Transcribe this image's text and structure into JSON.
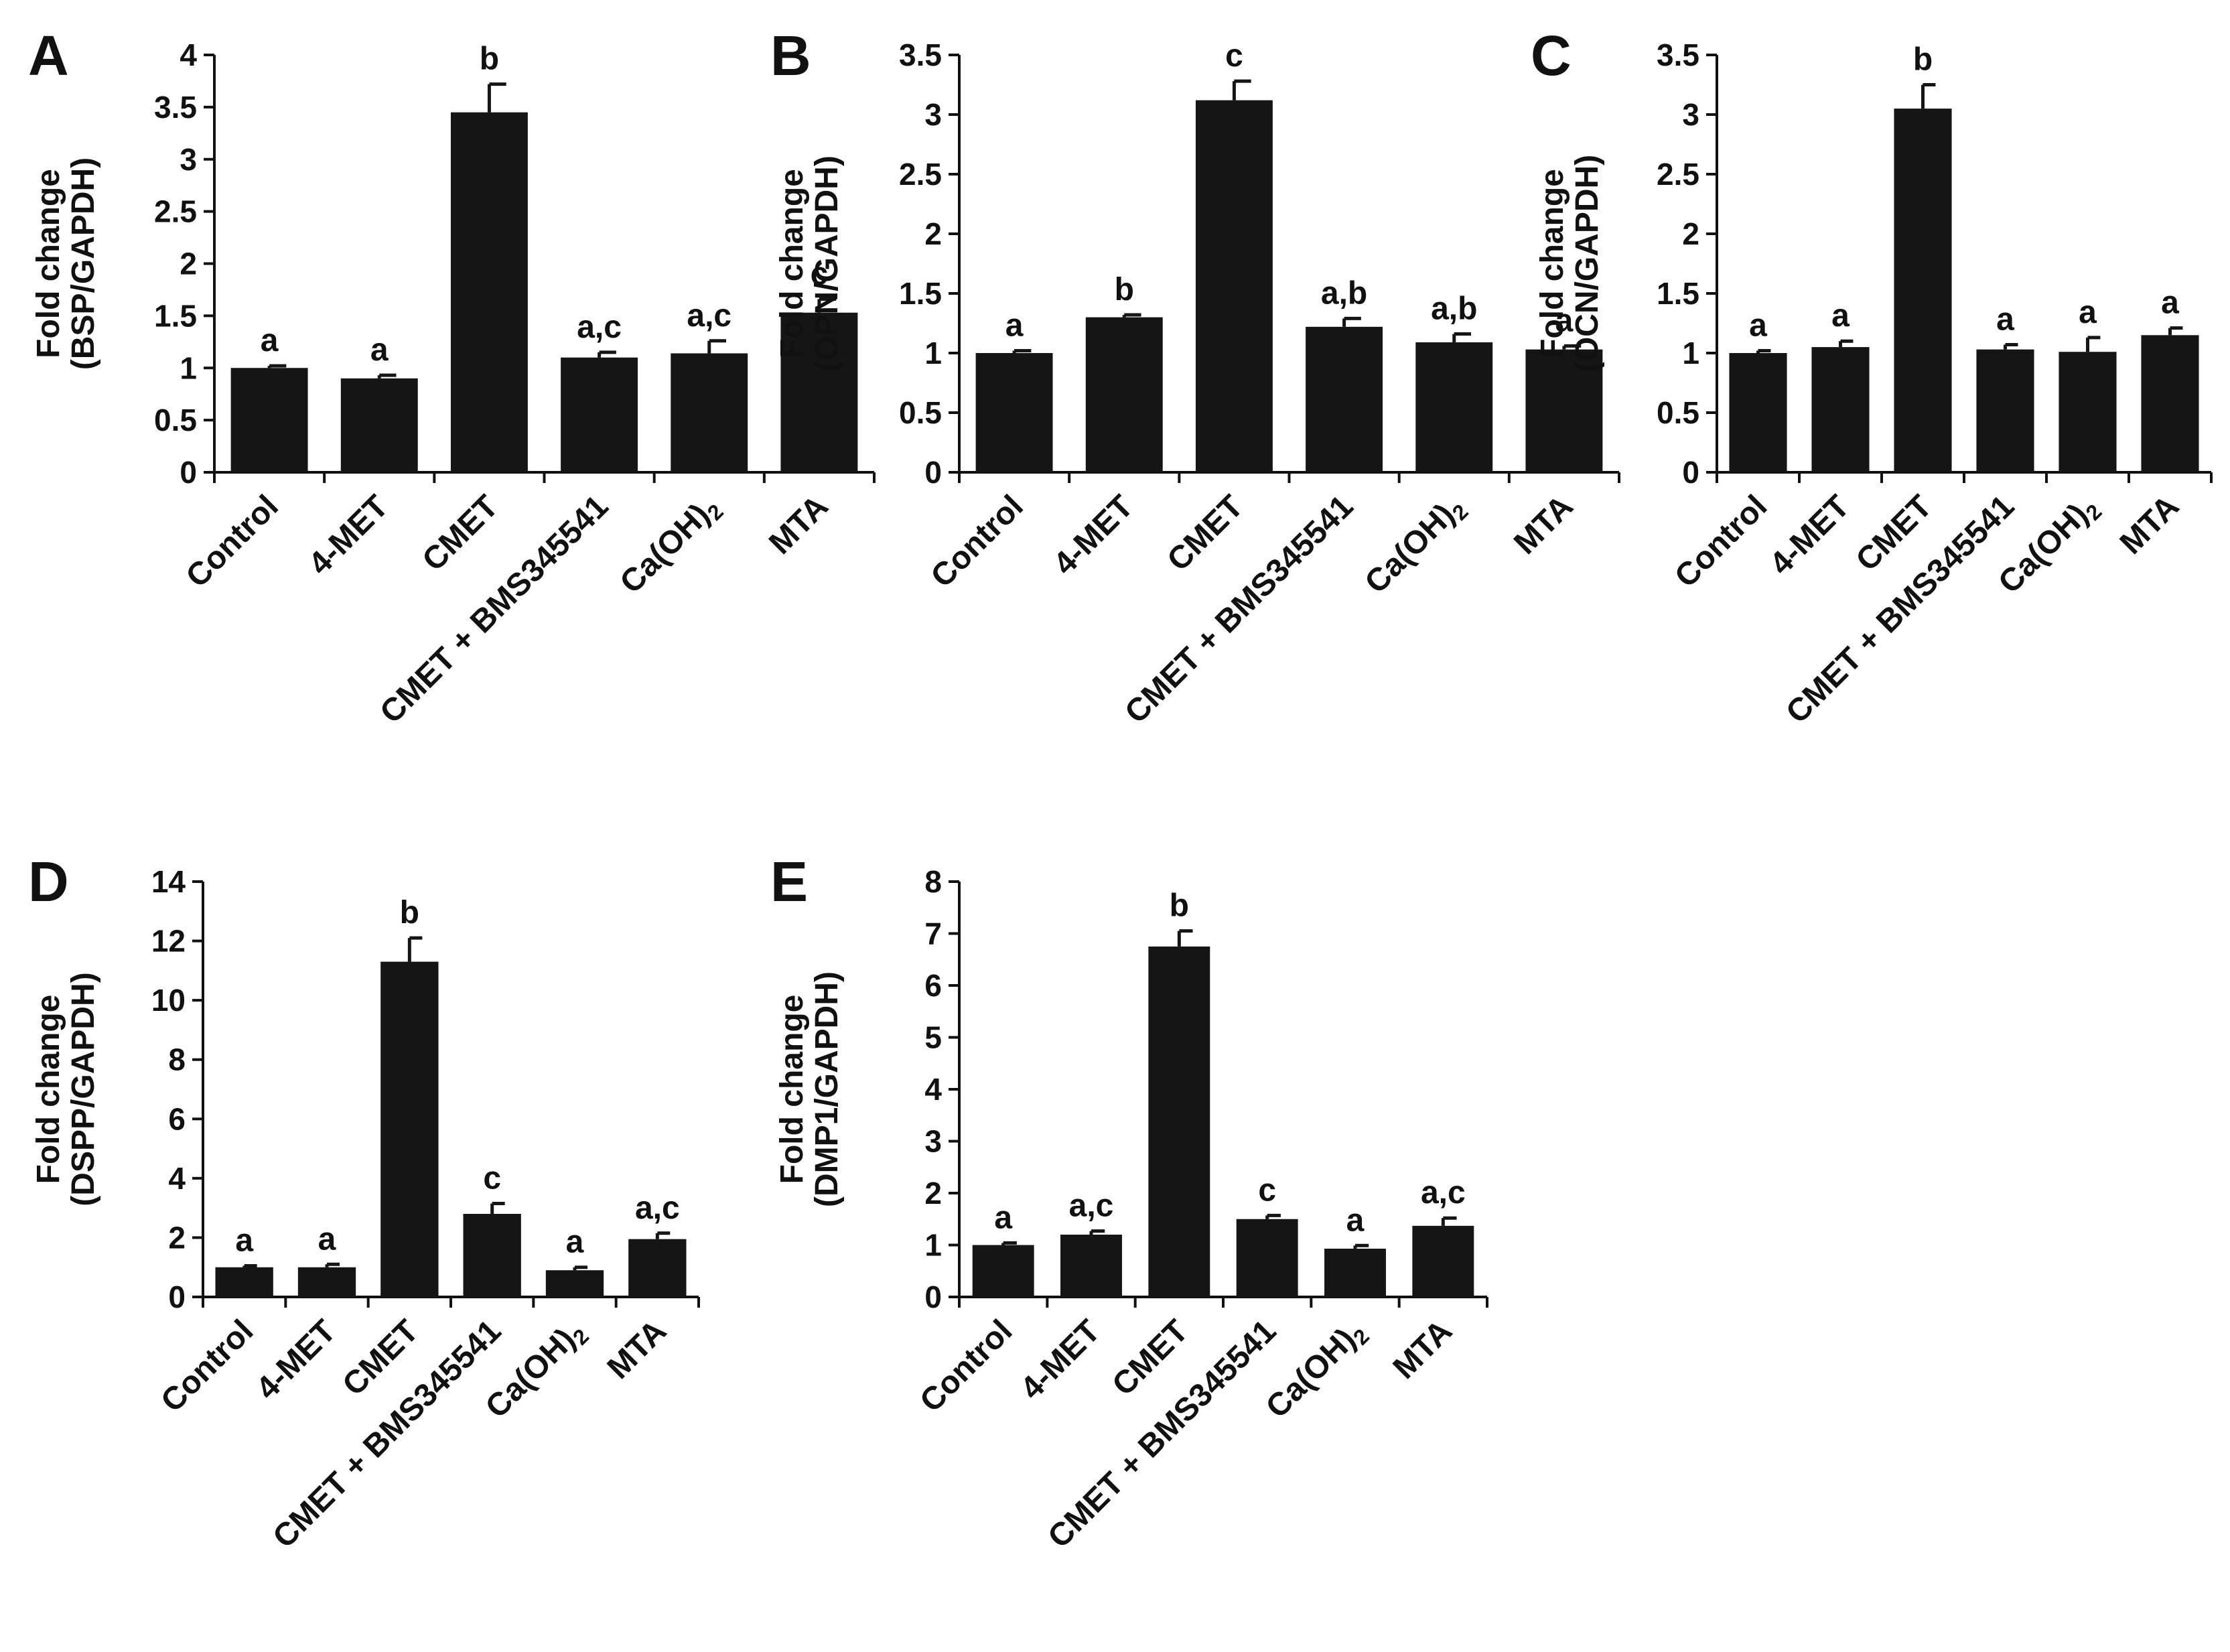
{
  "figure": {
    "bar_color": "#151515",
    "axis_color": "#111111",
    "background": "#ffffff"
  },
  "chart_data": [
    {
      "panel": "A",
      "type": "bar",
      "ylabel_line1": "Fold change",
      "ylabel_line2": "(BSP/GAPDH)",
      "categories": [
        "Control",
        "4-MET",
        "CMET",
        "CMET + BMS345541",
        "Ca(OH)2",
        "MTA"
      ],
      "values": [
        1.0,
        0.9,
        3.45,
        1.1,
        1.14,
        1.53
      ],
      "errors": [
        0.02,
        0.03,
        0.27,
        0.05,
        0.12,
        0.13
      ],
      "significance": [
        "a",
        "a",
        "b",
        "a,c",
        "a,c",
        "c"
      ],
      "ylim": [
        0,
        4
      ],
      "yticks": [
        "0",
        "0.5",
        "1",
        "1.5",
        "2",
        "2.5",
        "3",
        "3.5",
        "4"
      ]
    },
    {
      "panel": "B",
      "type": "bar",
      "ylabel_line1": "Fold change",
      "ylabel_line2": "(OPN/GAPDH)",
      "categories": [
        "Control",
        "4-MET",
        "CMET",
        "CMET + BMS345541",
        "Ca(OH)2",
        "MTA"
      ],
      "values": [
        1.0,
        1.3,
        3.12,
        1.22,
        1.09,
        1.03
      ],
      "errors": [
        0.02,
        0.02,
        0.16,
        0.07,
        0.07,
        0.03
      ],
      "significance": [
        "a",
        "b",
        "c",
        "a,b",
        "a,b",
        "a"
      ],
      "ylim": [
        0,
        3.5
      ],
      "yticks": [
        "0",
        "0.5",
        "1",
        "1.5",
        "2",
        "2.5",
        "3",
        "3.5"
      ]
    },
    {
      "panel": "C",
      "type": "bar",
      "ylabel_line1": "Fold change",
      "ylabel_line2": "(OCN/GAPDH)",
      "categories": [
        "Control",
        "4-MET",
        "CMET",
        "CMET + BMS345541",
        "Ca(OH)2",
        "MTA"
      ],
      "values": [
        1.0,
        1.05,
        3.05,
        1.03,
        1.01,
        1.15
      ],
      "errors": [
        0.02,
        0.05,
        0.2,
        0.04,
        0.12,
        0.06
      ],
      "significance": [
        "a",
        "a",
        "b",
        "a",
        "a",
        "a"
      ],
      "ylim": [
        0,
        3.5
      ],
      "yticks": [
        "0",
        "0.5",
        "1",
        "1.5",
        "2",
        "2.5",
        "3",
        "3.5"
      ]
    },
    {
      "panel": "D",
      "type": "bar",
      "ylabel_line1": "Fold change",
      "ylabel_line2": "(DSPP/GAPDH)",
      "categories": [
        "Control",
        "4-MET",
        "CMET",
        "CMET + BMS345541",
        "Ca(OH)2",
        "MTA"
      ],
      "values": [
        1.0,
        1.0,
        11.3,
        2.8,
        0.9,
        1.95
      ],
      "errors": [
        0.05,
        0.1,
        0.8,
        0.35,
        0.1,
        0.2
      ],
      "significance": [
        "a",
        "a",
        "b",
        "c",
        "a",
        "a,c"
      ],
      "ylim": [
        0,
        14
      ],
      "yticks": [
        "0",
        "2",
        "4",
        "6",
        "8",
        "10",
        "12",
        "14"
      ]
    },
    {
      "panel": "E",
      "type": "bar",
      "ylabel_line1": "Fold change",
      "ylabel_line2": "(DMP1/GAPDH)",
      "categories": [
        "Control",
        "4-MET",
        "CMET",
        "CMET + BMS345541",
        "Ca(OH)2",
        "MTA"
      ],
      "values": [
        1.0,
        1.2,
        6.75,
        1.5,
        0.93,
        1.37
      ],
      "errors": [
        0.04,
        0.07,
        0.3,
        0.07,
        0.06,
        0.15
      ],
      "significance": [
        "a",
        "a,c",
        "b",
        "c",
        "a",
        "a,c"
      ],
      "ylim": [
        0,
        8
      ],
      "yticks": [
        "0",
        "1",
        "2",
        "3",
        "4",
        "5",
        "6",
        "7",
        "8"
      ]
    }
  ]
}
